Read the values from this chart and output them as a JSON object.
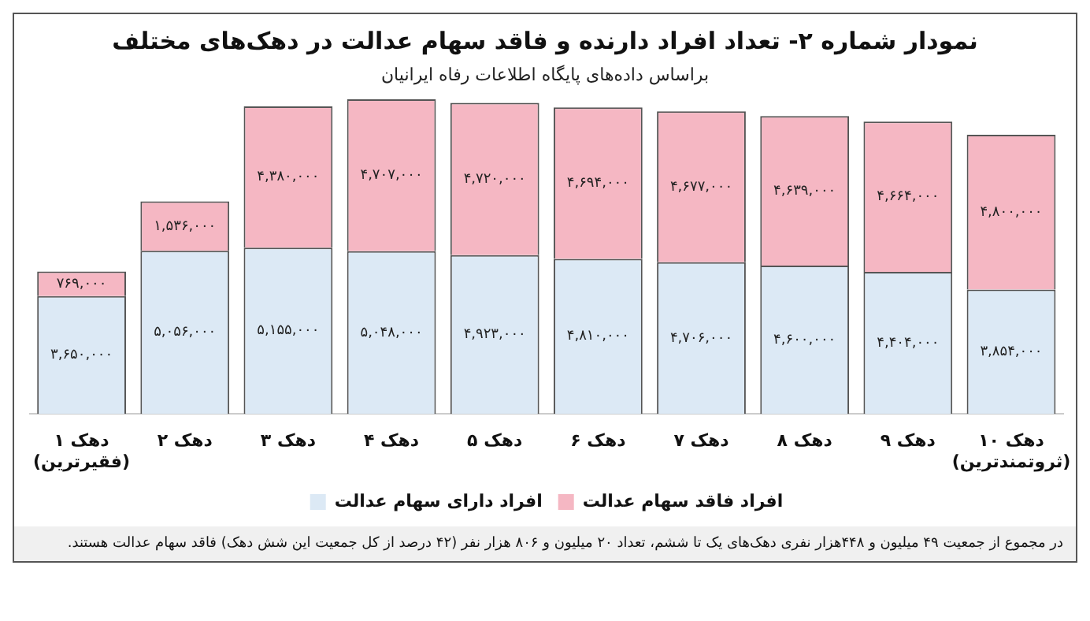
{
  "chart_data": {
    "type": "bar",
    "title": "نمودار شماره ۲- تعداد افراد دارنده و فاقد سهام عدالت در دهک‌های مختلف",
    "subtitle": "براساس داده‌های پایگاه اطلاعات رفاه ایرانیان",
    "categories": [
      "دهک ۱\n(فقیرترین)",
      "دهک ۲",
      "دهک ۳",
      "دهک ۴",
      "دهک ۵",
      "دهک ۶",
      "دهک ۷",
      "دهک ۸",
      "دهک ۹",
      "دهک ۱۰\n(ثروتمندترین)"
    ],
    "stacked": true,
    "legend": "bottom",
    "tick_labels": "x",
    "grid": false,
    "series": [
      {
        "name": "افراد دارای سهام عدالت",
        "color": "#dce9f5",
        "values": [
          3650000,
          5056000,
          5155000,
          5048000,
          4923000,
          4810000,
          4706000,
          4600000,
          4404000,
          3854000
        ],
        "value_labels": [
          "۳,۶۵۰,۰۰۰",
          "۵,۰۵۶,۰۰۰",
          "۵,۱۵۵,۰۰۰",
          "۵,۰۴۸,۰۰۰",
          "۴,۹۲۳,۰۰۰",
          "۴,۸۱۰,۰۰۰",
          "۴,۷۰۶,۰۰۰",
          "۴,۶۰۰,۰۰۰",
          "۴,۴۰۴,۰۰۰",
          "۳,۸۵۴,۰۰۰"
        ]
      },
      {
        "name": "افراد فاقد سهام عدالت",
        "color": "#f5b7c3",
        "values": [
          769000,
          1536000,
          4380000,
          4707000,
          4720000,
          4694000,
          4677000,
          4639000,
          4664000,
          4800000
        ],
        "value_labels": [
          "۷۶۹,۰۰۰",
          "۱,۵۳۶,۰۰۰",
          "۴,۳۸۰,۰۰۰",
          "۴,۷۰۷,۰۰۰",
          "۴,۷۲۰,۰۰۰",
          "۴,۶۹۴,۰۰۰",
          "۴,۶۷۷,۰۰۰",
          "۴,۶۳۹,۰۰۰",
          "۴,۶۶۴,۰۰۰",
          "۴,۸۰۰,۰۰۰"
        ]
      }
    ],
    "annotations": [
      "در مجموع از جمعیت ۴۹ میلیون و ۴۴۸هزار نفری دهک‌های یک تا ششم، تعداد ۲۰ میلیون و ۸۰۶ هزار نفر (۴۲ درصد از کل جمعیت این شش دهک) فاقد سهام عدالت هستند."
    ]
  }
}
